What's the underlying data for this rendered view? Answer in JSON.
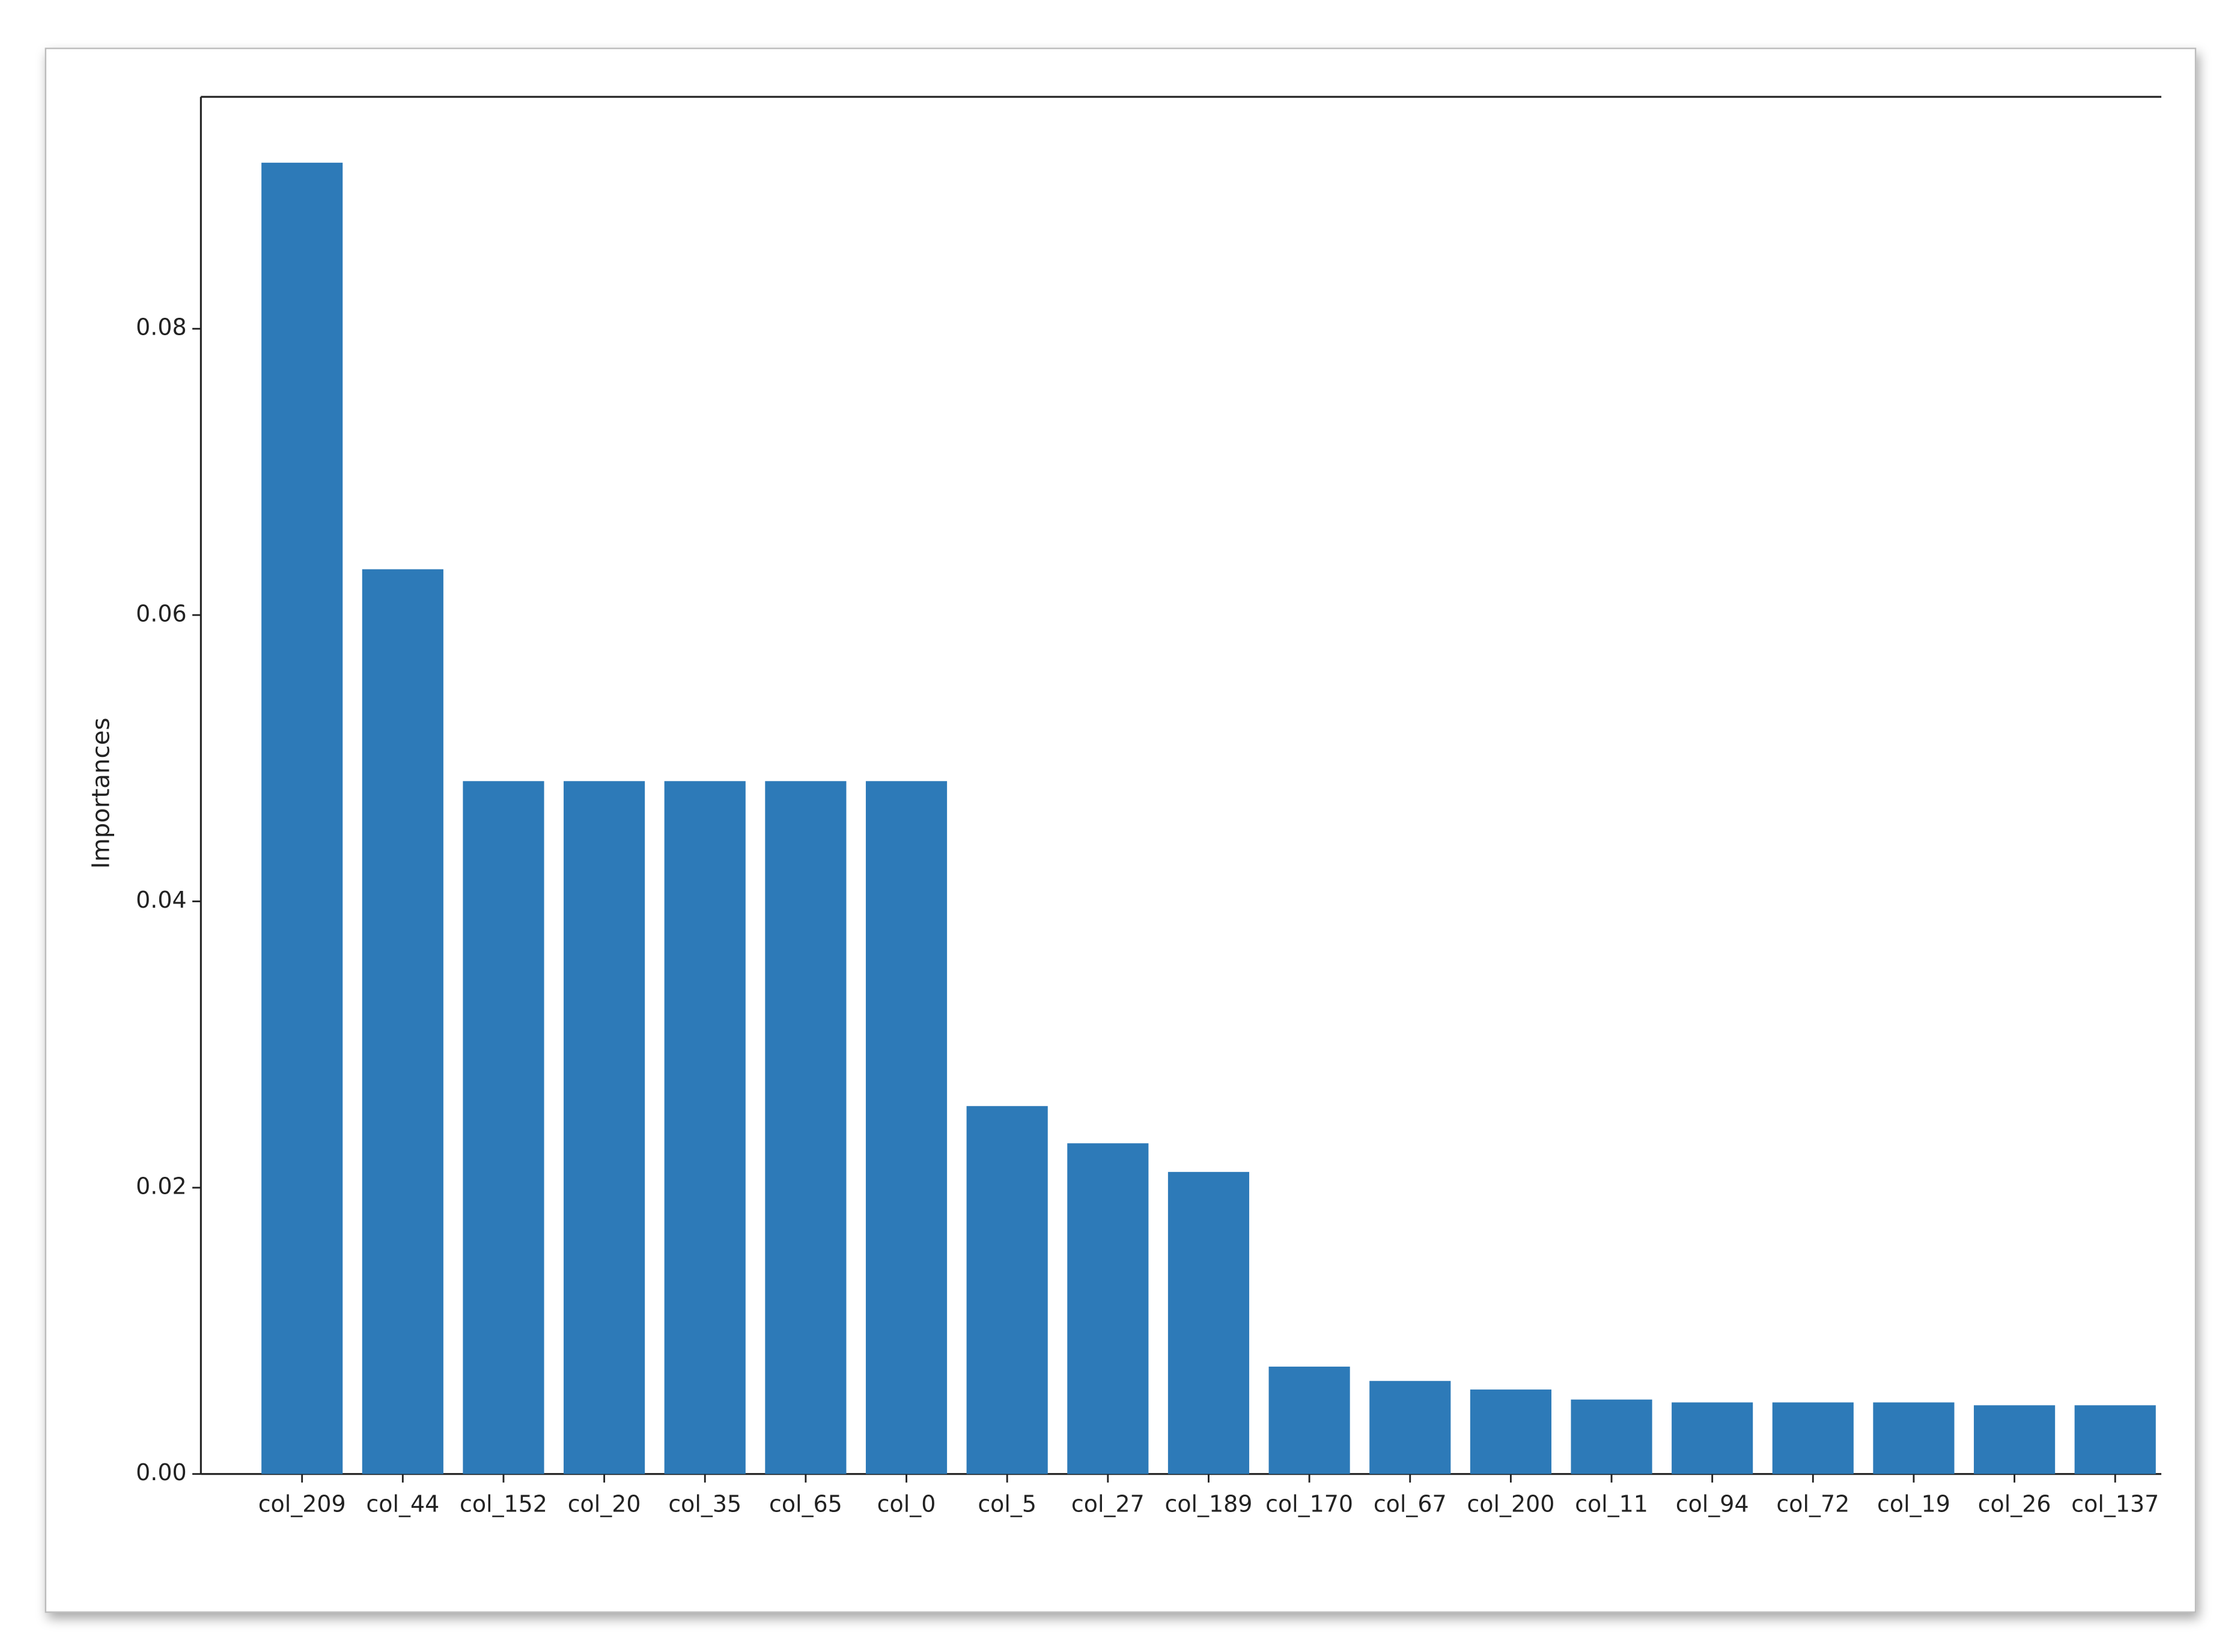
{
  "chart_data": {
    "type": "bar",
    "ylabel": "Importances",
    "categories": [
      "col_209",
      "col_44",
      "col_152",
      "col_20",
      "col_35",
      "col_65",
      "col_0",
      "col_5",
      "col_27",
      "col_189",
      "col_170",
      "col_67",
      "col_200",
      "col_11",
      "col_94",
      "col_72",
      "col_19",
      "col_26",
      "col_137"
    ],
    "values": [
      0.0916,
      0.0632,
      0.0484,
      0.0484,
      0.0484,
      0.0484,
      0.0484,
      0.0257,
      0.0231,
      0.0211,
      0.0075,
      0.0065,
      0.0059,
      0.0052,
      0.005,
      0.005,
      0.005,
      0.0048,
      0.0048
    ],
    "color": "#2d7ab8",
    "ylim": [
      0,
      0.0962
    ],
    "yticks": [
      {
        "value": 0,
        "label": "0.00"
      },
      0.02,
      0.04,
      0.06,
      0.08
    ],
    "grid": false
  }
}
